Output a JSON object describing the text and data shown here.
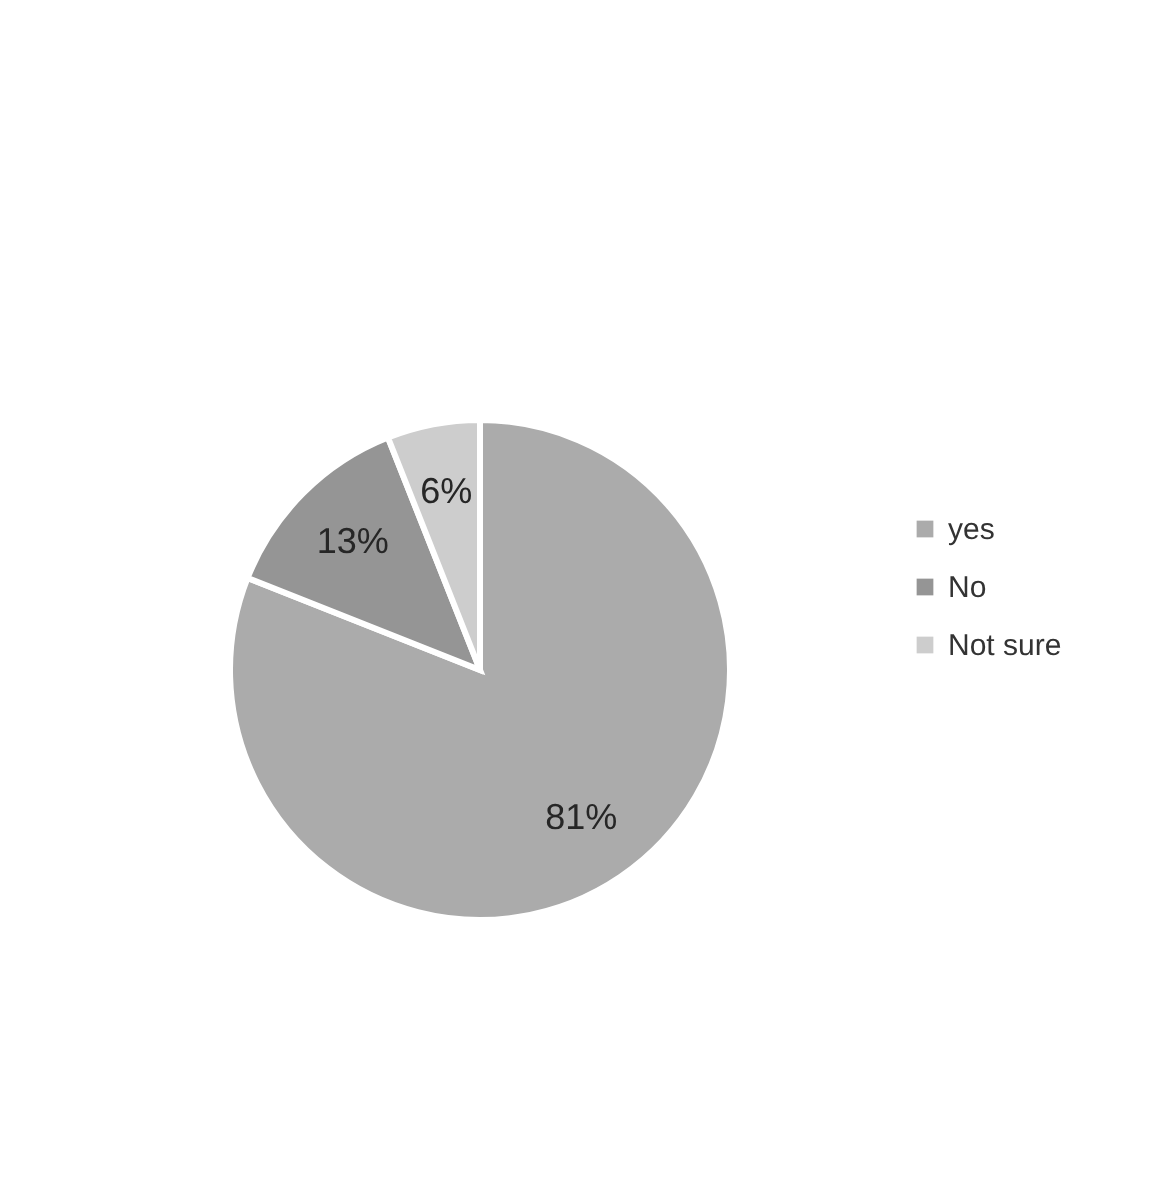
{
  "chart_data": {
    "type": "pie",
    "categories": [
      "yes",
      "No",
      "Not sure"
    ],
    "values": [
      81,
      13,
      6
    ],
    "value_labels": [
      "81%",
      "13%",
      "6%"
    ],
    "colors": [
      "#ababab",
      "#959595",
      "#cdcdcd"
    ],
    "legend": "right"
  }
}
